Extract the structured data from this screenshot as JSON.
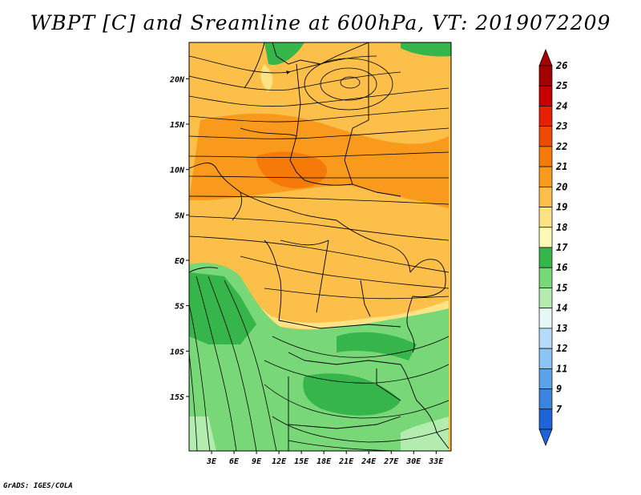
{
  "title": "WBPT [C] and Sreamline at 600hPa, VT: 2019072209",
  "footer": "GrADS: IGES/COLA",
  "map": {
    "lat_range": [
      -21,
      24
    ],
    "lon_range": [
      0,
      35
    ],
    "lat_ticks": [
      {
        "value": 20,
        "label": "20N"
      },
      {
        "value": 15,
        "label": "15N"
      },
      {
        "value": 10,
        "label": "10N"
      },
      {
        "value": 5,
        "label": "5N"
      },
      {
        "value": 0,
        "label": "EQ"
      },
      {
        "value": -5,
        "label": "5S"
      },
      {
        "value": -10,
        "label": "10S"
      },
      {
        "value": -15,
        "label": "15S"
      }
    ],
    "lon_ticks": [
      {
        "value": 3,
        "label": "3E"
      },
      {
        "value": 6,
        "label": "6E"
      },
      {
        "value": 9,
        "label": "9E"
      },
      {
        "value": 12,
        "label": "12E"
      },
      {
        "value": 15,
        "label": "15E"
      },
      {
        "value": 18,
        "label": "18E"
      },
      {
        "value": 21,
        "label": "21E"
      },
      {
        "value": 24,
        "label": "24E"
      },
      {
        "value": 27,
        "label": "27E"
      },
      {
        "value": 30,
        "label": "30E"
      },
      {
        "value": 33,
        "label": "33E"
      }
    ]
  },
  "colorbar": {
    "levels": [
      {
        "label": "26",
        "color": "#a50000"
      },
      {
        "label": "25",
        "color": "#c80000"
      },
      {
        "label": "24",
        "color": "#e62000"
      },
      {
        "label": "23",
        "color": "#f04a00"
      },
      {
        "label": "22",
        "color": "#f57a0a"
      },
      {
        "label": "21",
        "color": "#f99a1c"
      },
      {
        "label": "20",
        "color": "#fbbf4a"
      },
      {
        "label": "19",
        "color": "#fde384"
      },
      {
        "label": "18",
        "color": "#fdf7b8"
      },
      {
        "label": "17",
        "color": "#36b54a"
      },
      {
        "label": "16",
        "color": "#78d878"
      },
      {
        "label": "15",
        "color": "#b4ecb0"
      },
      {
        "label": "14",
        "color": "#e6f8f6"
      },
      {
        "label": "13",
        "color": "#b4dcfa"
      },
      {
        "label": "12",
        "color": "#8cc4f4"
      },
      {
        "label": "11",
        "color": "#5aa2ea"
      },
      {
        "label": "9",
        "color": "#3c82e0"
      },
      {
        "label": "7",
        "color": "#1e64d8"
      }
    ]
  }
}
